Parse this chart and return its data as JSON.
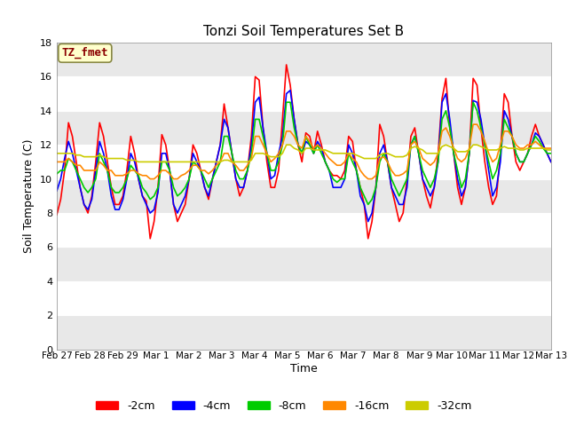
{
  "title": "Tonzi Soil Temperatures Set B",
  "xlabel": "Time",
  "ylabel": "Soil Temperature (C)",
  "ylim": [
    0,
    18
  ],
  "yticks": [
    0,
    2,
    4,
    6,
    8,
    10,
    12,
    14,
    16,
    18
  ],
  "fig_bg": "#ffffff",
  "plot_bg": "#ffffff",
  "annotation_text": "TZ_fmet",
  "annotation_color": "#8b0000",
  "annotation_bg": "#ffffcc",
  "series": {
    "-2cm": {
      "color": "#ff0000",
      "lw": 1.2
    },
    "-4cm": {
      "color": "#0000ff",
      "lw": 1.2
    },
    "-8cm": {
      "color": "#00cc00",
      "lw": 1.2
    },
    "-16cm": {
      "color": "#ff8800",
      "lw": 1.2
    },
    "-32cm": {
      "color": "#cccc00",
      "lw": 1.2
    }
  },
  "x_ticklabels": [
    "Feb 27",
    "Feb 28",
    "Feb 29",
    "Mar 1",
    "Mar 2",
    "Mar 3",
    "Mar 4",
    "Mar 5",
    "Mar 6",
    "Mar 7",
    "Mar 8",
    "Mar 9",
    "Mar 10",
    "Mar 11",
    "Mar 12",
    "Mar 13"
  ],
  "n_days": 16,
  "points_per_day": 8,
  "data_2cm": [
    7.9,
    8.8,
    10.5,
    13.3,
    12.5,
    11.0,
    9.5,
    8.5,
    8.0,
    9.0,
    11.0,
    13.3,
    12.5,
    11.0,
    9.5,
    8.5,
    8.5,
    9.0,
    10.5,
    12.5,
    11.5,
    10.0,
    9.0,
    8.7,
    6.5,
    7.5,
    9.5,
    12.6,
    12.0,
    10.5,
    8.5,
    7.5,
    8.0,
    8.5,
    10.0,
    12.0,
    11.5,
    10.5,
    9.5,
    8.8,
    10.0,
    11.0,
    12.0,
    14.4,
    13.0,
    11.5,
    10.0,
    9.0,
    9.5,
    10.5,
    12.5,
    16.0,
    15.8,
    13.0,
    11.0,
    9.5,
    9.5,
    10.5,
    13.5,
    16.7,
    15.5,
    13.5,
    12.0,
    11.0,
    12.7,
    12.5,
    11.5,
    12.8,
    12.0,
    11.0,
    10.5,
    10.2,
    10.2,
    10.0,
    10.5,
    12.5,
    12.2,
    10.5,
    9.5,
    8.5,
    6.5,
    7.5,
    9.5,
    13.2,
    12.5,
    11.0,
    9.5,
    8.5,
    7.5,
    8.0,
    10.0,
    12.5,
    13.0,
    11.5,
    10.0,
    9.0,
    8.3,
    9.5,
    11.5,
    14.7,
    15.9,
    13.0,
    11.5,
    9.5,
    8.5,
    9.5,
    11.5,
    15.9,
    15.5,
    13.0,
    11.0,
    9.5,
    8.5,
    9.0,
    11.5,
    15.0,
    14.5,
    12.5,
    11.0,
    10.5,
    11.0,
    11.5,
    12.5,
    13.2,
    12.5,
    12.0,
    11.5,
    11.0
  ],
  "data_4cm": [
    9.3,
    10.0,
    11.2,
    12.2,
    11.5,
    10.5,
    9.5,
    8.5,
    8.2,
    8.8,
    10.5,
    12.2,
    11.5,
    10.5,
    9.0,
    8.2,
    8.2,
    8.8,
    10.0,
    11.5,
    11.0,
    10.0,
    9.0,
    8.5,
    8.0,
    8.2,
    9.2,
    11.5,
    11.5,
    10.5,
    8.5,
    8.0,
    8.5,
    9.0,
    10.0,
    11.5,
    11.0,
    10.5,
    9.5,
    9.0,
    10.0,
    11.0,
    12.0,
    13.5,
    13.0,
    11.5,
    10.0,
    9.5,
    9.5,
    10.5,
    12.0,
    14.5,
    14.8,
    13.0,
    11.5,
    10.0,
    10.2,
    11.5,
    12.5,
    15.0,
    15.2,
    13.5,
    12.0,
    11.5,
    12.2,
    12.0,
    11.5,
    12.2,
    11.8,
    11.0,
    10.5,
    9.5,
    9.5,
    9.5,
    10.0,
    12.0,
    11.5,
    10.5,
    9.0,
    8.5,
    7.5,
    8.0,
    9.5,
    11.5,
    12.0,
    11.0,
    9.5,
    9.0,
    8.5,
    8.5,
    9.5,
    12.0,
    12.5,
    11.5,
    10.0,
    9.5,
    9.0,
    9.5,
    11.0,
    14.5,
    15.0,
    13.5,
    11.5,
    10.0,
    9.0,
    9.5,
    11.5,
    14.6,
    14.5,
    13.5,
    12.0,
    10.5,
    9.0,
    9.5,
    11.0,
    14.0,
    13.5,
    12.5,
    11.5,
    11.0,
    11.0,
    11.5,
    12.0,
    12.7,
    12.5,
    12.0,
    11.5,
    11.0
  ],
  "data_8cm": [
    10.3,
    10.5,
    10.5,
    11.2,
    11.0,
    10.5,
    10.0,
    9.5,
    9.2,
    9.5,
    10.0,
    11.5,
    11.0,
    10.5,
    9.5,
    9.2,
    9.2,
    9.5,
    10.0,
    10.8,
    10.5,
    10.2,
    9.5,
    9.2,
    8.8,
    9.0,
    9.5,
    11.0,
    11.0,
    10.5,
    9.5,
    9.0,
    9.2,
    9.5,
    10.0,
    11.0,
    10.8,
    10.5,
    10.0,
    9.5,
    10.0,
    10.5,
    11.0,
    12.5,
    12.5,
    11.5,
    10.5,
    10.0,
    10.0,
    10.5,
    11.5,
    13.5,
    13.5,
    12.5,
    11.5,
    10.5,
    10.5,
    11.0,
    12.0,
    14.5,
    14.5,
    13.0,
    12.0,
    11.5,
    12.5,
    12.0,
    11.5,
    12.0,
    11.5,
    11.0,
    10.5,
    10.0,
    9.8,
    10.0,
    10.0,
    11.5,
    11.0,
    10.5,
    9.5,
    9.0,
    8.5,
    8.8,
    9.5,
    11.0,
    11.5,
    11.0,
    10.0,
    9.5,
    9.0,
    9.5,
    10.0,
    12.0,
    12.5,
    11.5,
    10.5,
    10.0,
    9.5,
    10.0,
    11.0,
    13.5,
    14.0,
    13.0,
    11.5,
    10.5,
    9.5,
    10.0,
    11.5,
    14.5,
    14.0,
    13.0,
    12.0,
    11.0,
    10.0,
    10.5,
    11.5,
    13.5,
    13.0,
    12.5,
    11.5,
    11.0,
    11.0,
    11.5,
    12.0,
    12.5,
    12.2,
    11.8,
    11.5,
    11.5
  ],
  "data_16cm": [
    11.0,
    11.0,
    11.0,
    11.2,
    11.0,
    10.8,
    10.8,
    10.5,
    10.5,
    10.5,
    10.5,
    11.0,
    10.8,
    10.5,
    10.5,
    10.2,
    10.2,
    10.2,
    10.3,
    10.5,
    10.5,
    10.3,
    10.2,
    10.2,
    10.0,
    10.0,
    10.2,
    10.5,
    10.5,
    10.3,
    10.0,
    10.0,
    10.2,
    10.3,
    10.5,
    10.8,
    10.8,
    10.5,
    10.5,
    10.3,
    10.5,
    10.8,
    11.0,
    11.5,
    11.5,
    11.0,
    10.8,
    10.5,
    10.5,
    10.8,
    11.2,
    12.5,
    12.5,
    12.0,
    11.5,
    11.0,
    11.2,
    11.5,
    12.0,
    12.8,
    12.8,
    12.5,
    12.0,
    11.8,
    12.5,
    12.2,
    11.8,
    12.0,
    11.8,
    11.5,
    11.2,
    11.0,
    10.8,
    10.8,
    11.0,
    11.5,
    11.2,
    11.0,
    10.5,
    10.2,
    10.0,
    10.0,
    10.2,
    11.2,
    11.3,
    11.0,
    10.5,
    10.2,
    10.2,
    10.3,
    10.5,
    12.0,
    12.2,
    11.8,
    11.2,
    11.0,
    10.8,
    11.0,
    11.5,
    12.8,
    13.0,
    12.5,
    11.8,
    11.2,
    11.0,
    11.2,
    11.8,
    13.2,
    13.2,
    12.8,
    12.2,
    11.5,
    11.0,
    11.2,
    12.0,
    12.8,
    12.8,
    12.5,
    12.0,
    11.8,
    11.8,
    12.0,
    12.0,
    12.2,
    12.0,
    11.8,
    11.8,
    11.8
  ],
  "data_32cm": [
    11.5,
    11.5,
    11.5,
    11.5,
    11.5,
    11.4,
    11.4,
    11.3,
    11.3,
    11.3,
    11.3,
    11.4,
    11.3,
    11.2,
    11.2,
    11.2,
    11.2,
    11.2,
    11.1,
    11.1,
    11.1,
    11.0,
    11.0,
    11.0,
    11.0,
    11.0,
    11.0,
    11.0,
    11.0,
    11.0,
    11.0,
    11.0,
    11.0,
    11.0,
    11.0,
    11.0,
    11.0,
    11.0,
    11.0,
    11.0,
    11.0,
    11.0,
    11.0,
    11.1,
    11.1,
    11.0,
    11.0,
    11.0,
    11.0,
    11.0,
    11.1,
    11.5,
    11.5,
    11.5,
    11.4,
    11.3,
    11.3,
    11.3,
    11.5,
    12.0,
    12.0,
    11.8,
    11.7,
    11.5,
    11.8,
    11.8,
    11.7,
    11.7,
    11.7,
    11.7,
    11.6,
    11.5,
    11.5,
    11.5,
    11.5,
    11.5,
    11.5,
    11.4,
    11.3,
    11.2,
    11.2,
    11.2,
    11.2,
    11.4,
    11.5,
    11.5,
    11.4,
    11.3,
    11.3,
    11.3,
    11.4,
    11.8,
    11.9,
    11.8,
    11.7,
    11.5,
    11.5,
    11.5,
    11.5,
    11.9,
    12.0,
    11.9,
    11.8,
    11.6,
    11.6,
    11.6,
    11.7,
    12.0,
    12.0,
    11.9,
    11.8,
    11.7,
    11.7,
    11.7,
    11.8,
    11.9,
    11.8,
    11.8,
    11.8,
    11.7,
    11.7,
    11.8,
    11.8,
    11.8,
    11.8,
    11.8,
    11.7,
    11.7
  ]
}
